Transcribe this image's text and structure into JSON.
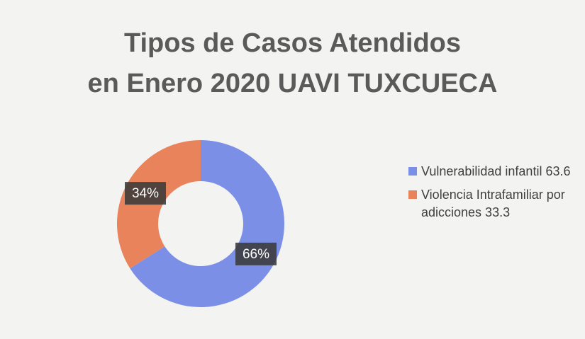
{
  "chart_data": {
    "type": "pie",
    "donut": true,
    "title": [
      "Tipos de Casos Atendidos",
      "en Enero 2020 UAVI TUXCUECA"
    ],
    "categories": [
      "Vulnerabilidad infantil 63.6",
      "Violencia Intrafamiliar por adicciones 33.3"
    ],
    "values": [
      66,
      34
    ],
    "value_labels": [
      "66%",
      "34%"
    ],
    "colors": [
      "#7b8fe6",
      "#e8835c"
    ],
    "legend": "right"
  }
}
